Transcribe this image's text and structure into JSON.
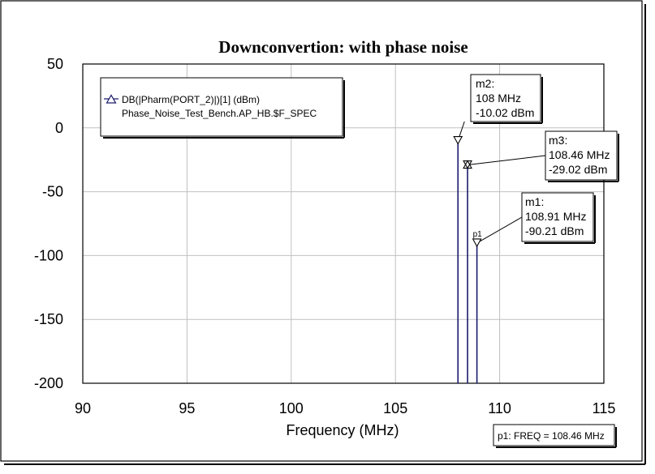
{
  "chart_data": {
    "type": "line",
    "title": "Downconvertion: with phase noise",
    "xlabel": "Frequency (MHz)",
    "ylabel": "",
    "xlim": [
      90,
      115
    ],
    "ylim": [
      -200,
      50
    ],
    "xticks": [
      "90",
      "95",
      "100",
      "105",
      "110",
      "115"
    ],
    "yticks": [
      "50",
      "0",
      "-50",
      "-100",
      "-150",
      "-200"
    ],
    "grid": true,
    "legend_position": "top-left",
    "series": [
      {
        "name": "DB(|Pharm(PORT_2)|)[1] (dBm)",
        "sub": "Phase_Noise_Test_Bench.AP_HB.$F_SPEC",
        "color": "#1a1a6e",
        "stems": [
          {
            "x": 108.0,
            "y": -10.02
          },
          {
            "x": 108.46,
            "y": -29.02
          },
          {
            "x": 108.91,
            "y": -90.21
          }
        ]
      }
    ],
    "markers": [
      {
        "name": "m2:",
        "freq": "108 MHz",
        "value": "-10.02 dBm",
        "x": 108.0,
        "y": -10.02
      },
      {
        "name": "m3:",
        "freq": "108.46 MHz",
        "value": "-29.02 dBm",
        "x": 108.46,
        "y": -29.02
      },
      {
        "name": "m1:",
        "freq": "108.91 MHz",
        "value": "-90.21 dBm",
        "x": 108.91,
        "y": -90.21
      }
    ],
    "point_label": "p1",
    "cursor_readout": "p1: FREQ = 108.46 MHz"
  }
}
